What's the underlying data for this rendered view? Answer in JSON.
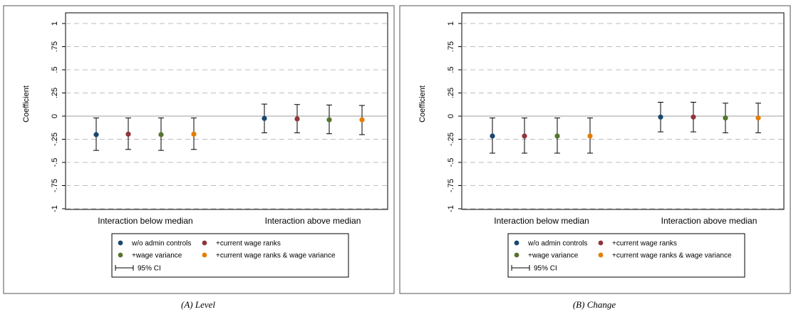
{
  "colors": {
    "wo_admin": "#1a476f",
    "current_wage_ranks": "#90353b",
    "wage_variance": "#55752f",
    "both": "#e37e00",
    "ci": "#000000",
    "grid": "#bdbdbd",
    "zero_line": "#7f7f7f"
  },
  "chart_data": [
    {
      "type": "scatter",
      "caption": "(A) Level",
      "ylabel": "Coefficient",
      "ylim": [
        -1,
        1
      ],
      "yticks": [
        1,
        0.75,
        0.5,
        0.25,
        0,
        -0.25,
        -0.5,
        -0.75,
        -1
      ],
      "ytick_labels": [
        "1",
        ".75",
        ".5",
        ".25",
        "0",
        "-.25",
        "-.5",
        "-.75",
        "-1"
      ],
      "grid": true,
      "categories": [
        "Interaction below median",
        "Interaction above median"
      ],
      "legend": {
        "placement": "bottom",
        "entries": [
          "w/o admin controls",
          "+current wage ranks",
          "+wage variance",
          "+current wage ranks & wage variance"
        ],
        "ci_label": "95% CI"
      },
      "series": [
        {
          "name": "w/o admin controls",
          "color_key": "wo_admin",
          "coef": [
            -0.2,
            -0.025
          ],
          "ci_low": [
            -0.37,
            -0.18
          ],
          "ci_high": [
            -0.02,
            0.13
          ]
        },
        {
          "name": "+current wage ranks",
          "color_key": "current_wage_ranks",
          "coef": [
            -0.195,
            -0.03
          ],
          "ci_low": [
            -0.36,
            -0.18
          ],
          "ci_high": [
            -0.02,
            0.125
          ]
        },
        {
          "name": "+wage variance",
          "color_key": "wage_variance",
          "coef": [
            -0.2,
            -0.04
          ],
          "ci_low": [
            -0.37,
            -0.19
          ],
          "ci_high": [
            -0.02,
            0.12
          ]
        },
        {
          "name": "+current wage ranks & wage variance",
          "color_key": "both",
          "coef": [
            -0.195,
            -0.04
          ],
          "ci_low": [
            -0.36,
            -0.2
          ],
          "ci_high": [
            -0.02,
            0.115
          ]
        }
      ]
    },
    {
      "type": "scatter",
      "caption": "(B) Change",
      "ylabel": "Coefficient",
      "ylim": [
        -1,
        1
      ],
      "yticks": [
        1,
        0.75,
        0.5,
        0.25,
        0,
        -0.25,
        -0.5,
        -0.75,
        -1
      ],
      "ytick_labels": [
        "1",
        ".75",
        ".5",
        ".25",
        "0",
        "-.25",
        "-.5",
        "-.75",
        "-1"
      ],
      "grid": true,
      "categories": [
        "Interaction below median",
        "Interaction above median"
      ],
      "legend": {
        "placement": "bottom",
        "entries": [
          "w/o admin controls",
          "+current wage ranks",
          "+wage variance",
          "+current wage ranks & wage variance"
        ],
        "ci_label": "95% CI"
      },
      "series": [
        {
          "name": "w/o admin controls",
          "color_key": "wo_admin",
          "coef": [
            -0.215,
            -0.01
          ],
          "ci_low": [
            -0.4,
            -0.17
          ],
          "ci_high": [
            -0.02,
            0.15
          ]
        },
        {
          "name": "+current wage ranks",
          "color_key": "current_wage_ranks",
          "coef": [
            -0.215,
            -0.01
          ],
          "ci_low": [
            -0.4,
            -0.17
          ],
          "ci_high": [
            -0.02,
            0.15
          ]
        },
        {
          "name": "+wage variance",
          "color_key": "wage_variance",
          "coef": [
            -0.215,
            -0.02
          ],
          "ci_low": [
            -0.4,
            -0.18
          ],
          "ci_high": [
            -0.02,
            0.14
          ]
        },
        {
          "name": "+current wage ranks & wage variance",
          "color_key": "both",
          "coef": [
            -0.215,
            -0.02
          ],
          "ci_low": [
            -0.4,
            -0.18
          ],
          "ci_high": [
            -0.02,
            0.14
          ]
        }
      ]
    }
  ]
}
